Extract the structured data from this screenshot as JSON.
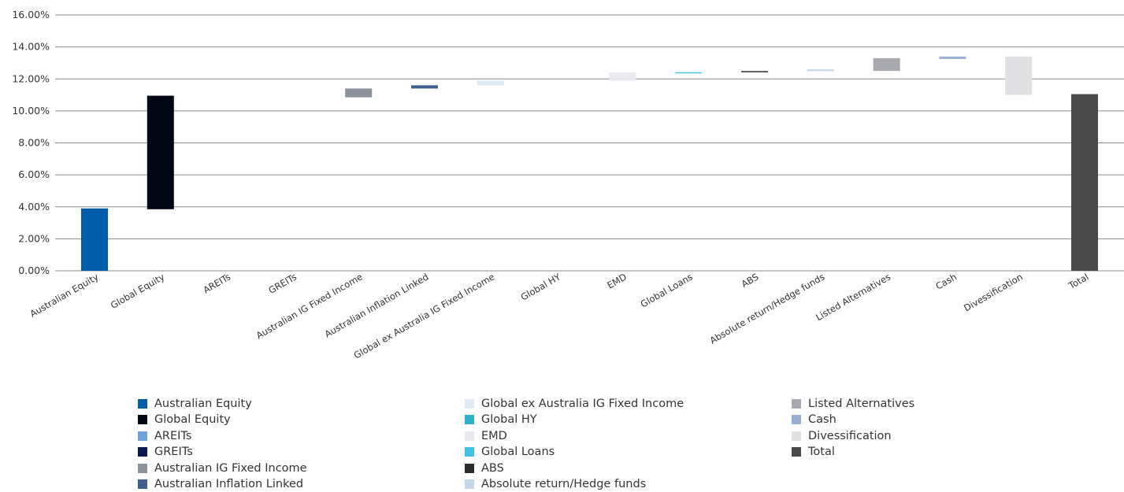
{
  "chart_data": {
    "type": "waterfall-bar",
    "title": "",
    "ylabel": "",
    "xlabel": "",
    "ylim": [
      0,
      16
    ],
    "yticks": [
      "0.00%",
      "2.00%",
      "4.00%",
      "6.00%",
      "8.00%",
      "10.00%",
      "12.00%",
      "14.00%",
      "16.00%"
    ],
    "grid": true,
    "legend_position": "bottom",
    "bars": [
      {
        "name": "Australian Equity",
        "base": 0.0,
        "top": 3.9,
        "color": "#005daa"
      },
      {
        "name": "Global Equity",
        "base": 3.85,
        "top": 10.95,
        "color": "#000514"
      },
      {
        "name": "AREITs",
        "base": 10.95,
        "top": 10.95,
        "color": "#6fa0d8"
      },
      {
        "name": "GREITs",
        "base": 10.95,
        "top": 10.95,
        "color": "#0b1a4e"
      },
      {
        "name": "Australian IG Fixed Income",
        "base": 10.85,
        "top": 11.4,
        "color": "#8b9299"
      },
      {
        "name": "Australian Inflation Linked",
        "base": 11.4,
        "top": 11.6,
        "color": "#3f5f8f"
      },
      {
        "name": "Global ex Australia IG Fixed Income",
        "base": 11.6,
        "top": 11.9,
        "color": "#dde9f5"
      },
      {
        "name": "Global HY",
        "base": 11.9,
        "top": 11.9,
        "color": "#2fb2c9"
      },
      {
        "name": "EMD",
        "base": 11.9,
        "top": 12.4,
        "color": "#e8e8ef"
      },
      {
        "name": "Global Loans",
        "base": 12.35,
        "top": 12.42,
        "color": "#43c0e6"
      },
      {
        "name": "ABS",
        "base": 12.42,
        "top": 12.49,
        "color": "#2b2b2b"
      },
      {
        "name": "Absolute return/Hedge funds",
        "base": 12.49,
        "top": 12.6,
        "color": "#c5d6ea"
      },
      {
        "name": "Listed Alternatives",
        "base": 12.5,
        "top": 13.3,
        "color": "#a7a9ae"
      },
      {
        "name": "Cash",
        "base": 13.25,
        "top": 13.4,
        "color": "#98afd2"
      },
      {
        "name": "Divessification",
        "base": 11.0,
        "top": 13.4,
        "color": "#e0e0e3"
      },
      {
        "name": "Total",
        "base": 0.0,
        "top": 11.05,
        "color": "#4a4a4a"
      }
    ],
    "legend": [
      [
        "Australian Equity",
        "Global Equity",
        "AREITs",
        "GREITs",
        "Australian IG Fixed Income",
        "Australian Inflation Linked"
      ],
      [
        "Global ex Australia IG Fixed Income",
        "Global HY",
        "EMD",
        "Global Loans",
        "ABS",
        "Absolute return/Hedge funds"
      ],
      [
        "Listed Alternatives",
        "Cash",
        "Divessification",
        "Total"
      ]
    ]
  }
}
